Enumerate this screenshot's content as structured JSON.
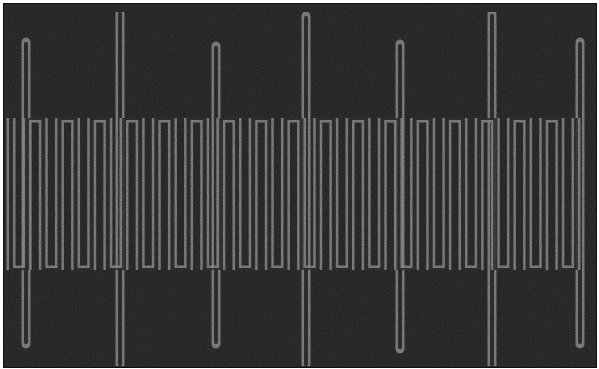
{
  "image": {
    "kind": "grayscale-microscope-photo",
    "palette": {
      "background": "#171717",
      "noise_dark": "#0b0b0b",
      "noise_light": "#2a2a2a",
      "pattern_edge": "#a8a8a8",
      "pattern_fill": "#3a3a3a",
      "frame": "#111111"
    },
    "pattern": {
      "name": "serpentine-meander-line",
      "vertical_lines": "tall-vertical-lines",
      "rungs": 36
    }
  }
}
